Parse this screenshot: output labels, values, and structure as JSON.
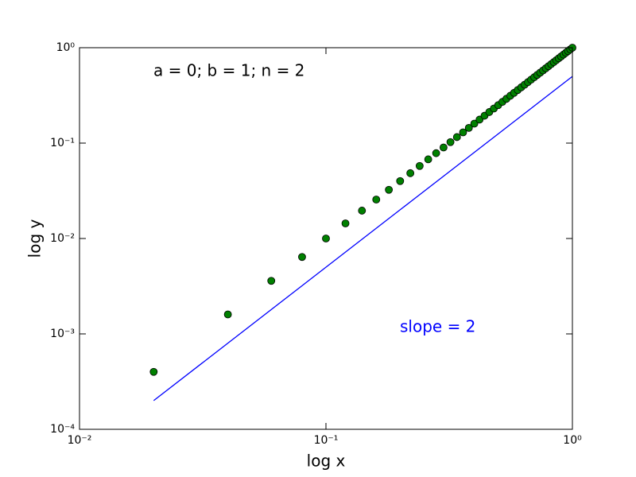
{
  "chart_data": {
    "type": "scatter",
    "xlabel": "log x",
    "ylabel": "log y",
    "annotations": [
      {
        "text": "a = 0; b = 1; n = 2",
        "color": "#000000"
      },
      {
        "text": "slope = 2",
        "color": "#0000ff"
      }
    ],
    "xscale": "log",
    "yscale": "log",
    "xlim": [
      0.01,
      1
    ],
    "ylim": [
      0.0001,
      1
    ],
    "xticks": [
      {
        "value": 0.01,
        "label": "10⁻²"
      },
      {
        "value": 0.1,
        "label": "10⁻¹"
      },
      {
        "value": 1,
        "label": "10⁰"
      }
    ],
    "yticks": [
      {
        "value": 0.0001,
        "label": "10⁻⁴"
      },
      {
        "value": 0.001,
        "label": "10⁻³"
      },
      {
        "value": 0.01,
        "label": "10⁻²"
      },
      {
        "value": 0.1,
        "label": "10⁻¹"
      },
      {
        "value": 1,
        "label": "10⁰"
      }
    ],
    "series": [
      {
        "type": "scatter",
        "color": "#008000",
        "x": [
          0.02,
          0.04,
          0.06,
          0.08,
          0.1,
          0.12,
          0.14,
          0.16,
          0.18,
          0.2,
          0.22,
          0.24,
          0.26,
          0.28,
          0.3,
          0.32,
          0.34,
          0.36,
          0.38,
          0.4,
          0.42,
          0.44,
          0.46,
          0.48,
          0.5,
          0.52,
          0.54,
          0.56,
          0.58,
          0.6,
          0.62,
          0.64,
          0.66,
          0.68,
          0.7,
          0.72,
          0.74,
          0.76,
          0.78,
          0.8,
          0.82,
          0.84,
          0.86,
          0.88,
          0.9,
          0.92,
          0.94,
          0.96,
          0.98,
          1
        ],
        "y": [
          0.0004,
          0.0016,
          0.0036,
          0.0064,
          0.01,
          0.0144,
          0.0196,
          0.0256,
          0.0324,
          0.04,
          0.0484,
          0.0576,
          0.0676,
          0.0784,
          0.09,
          0.1024,
          0.1156,
          0.1296,
          0.1444,
          0.16,
          0.1764,
          0.1936,
          0.2116,
          0.2304,
          0.25,
          0.2704,
          0.2916,
          0.3136,
          0.3364,
          0.36,
          0.3844,
          0.4096,
          0.4356,
          0.4624,
          0.49,
          0.5184,
          0.5476,
          0.5776,
          0.6084,
          0.64,
          0.6724,
          0.7056,
          0.7396,
          0.7744,
          0.81,
          0.8464,
          0.8836,
          0.9216,
          0.9604,
          1
        ]
      },
      {
        "type": "line",
        "color": "#0000ff",
        "x": [
          0.02,
          1
        ],
        "y": [
          0.0002,
          0.5
        ]
      }
    ]
  }
}
